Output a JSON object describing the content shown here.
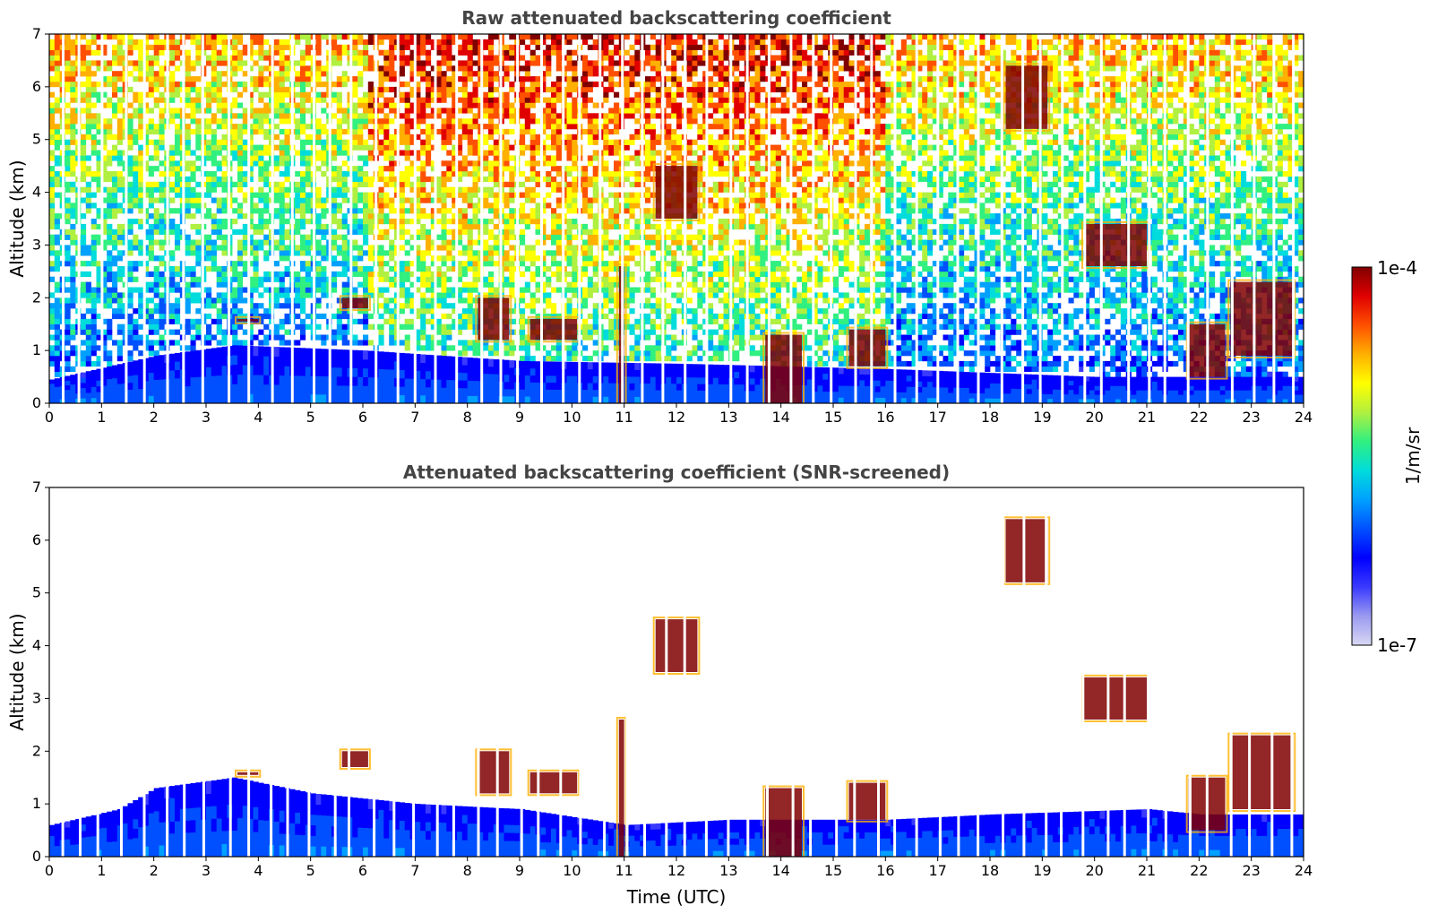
{
  "chart_data": [
    {
      "type": "heatmap",
      "title": "Raw attenuated backscattering coefficient",
      "xlabel": "",
      "ylabel": "Altitude (km)",
      "xlim": [
        0,
        24
      ],
      "ylim": [
        0,
        7
      ],
      "xticks": [
        "0",
        "1",
        "2",
        "3",
        "4",
        "5",
        "6",
        "7",
        "8",
        "9",
        "10",
        "11",
        "12",
        "13",
        "14",
        "15",
        "16",
        "17",
        "18",
        "19",
        "20",
        "21",
        "22",
        "23",
        "24"
      ],
      "yticks": [
        "0",
        "1",
        "2",
        "3",
        "4",
        "5",
        "6",
        "7"
      ],
      "noise": "speckled background increasing with altitude, stronger around 6-16 UTC",
      "boundary_layer_top_km": [
        [
          0,
          0.45
        ],
        [
          2,
          0.9
        ],
        [
          3.5,
          1.1
        ],
        [
          6,
          1.0
        ],
        [
          9,
          0.8
        ],
        [
          12,
          0.75
        ],
        [
          16,
          0.65
        ],
        [
          20,
          0.5
        ],
        [
          24,
          0.5
        ]
      ],
      "cloud_layers": [
        {
          "t_start": 3.6,
          "t_end": 4.0,
          "h_km": [
            1.55,
            1.6
          ]
        },
        {
          "t_start": 5.6,
          "t_end": 6.1,
          "h_km": [
            1.8,
            2.0
          ]
        },
        {
          "t_start": 8.2,
          "t_end": 8.8,
          "h_km": [
            1.2,
            2.0
          ]
        },
        {
          "t_start": 9.2,
          "t_end": 10.1,
          "h_km": [
            1.2,
            1.6
          ]
        },
        {
          "t_start": 10.9,
          "t_end": 11.0,
          "h_km": [
            0.0,
            2.6
          ]
        },
        {
          "t_start": 11.6,
          "t_end": 12.4,
          "h_km": [
            3.5,
            4.5
          ]
        },
        {
          "t_start": 13.7,
          "t_end": 14.4,
          "h_km": [
            0.0,
            1.3
          ]
        },
        {
          "t_start": 15.3,
          "t_end": 16.0,
          "h_km": [
            0.7,
            1.4
          ]
        },
        {
          "t_start": 18.3,
          "t_end": 19.1,
          "h_km": [
            5.2,
            6.4
          ]
        },
        {
          "t_start": 19.8,
          "t_end": 21.0,
          "h_km": [
            2.6,
            3.4
          ]
        },
        {
          "t_start": 21.8,
          "t_end": 22.5,
          "h_km": [
            0.5,
            1.5
          ]
        },
        {
          "t_start": 22.6,
          "t_end": 23.8,
          "h_km": [
            0.9,
            2.3
          ]
        }
      ]
    },
    {
      "type": "heatmap",
      "title": "Attenuated backscattering coefficient (SNR-screened)",
      "xlabel": "Time (UTC)",
      "ylabel": "Altitude (km)",
      "xlim": [
        0,
        24
      ],
      "ylim": [
        0,
        7
      ],
      "xticks": [
        "0",
        "1",
        "2",
        "3",
        "4",
        "5",
        "6",
        "7",
        "8",
        "9",
        "10",
        "11",
        "12",
        "13",
        "14",
        "15",
        "16",
        "17",
        "18",
        "19",
        "20",
        "21",
        "22",
        "23",
        "24"
      ],
      "yticks": [
        "0",
        "1",
        "2",
        "3",
        "4",
        "5",
        "6",
        "7"
      ],
      "boundary_layer_top_km": [
        [
          0,
          0.6
        ],
        [
          1.3,
          0.9
        ],
        [
          2,
          1.3
        ],
        [
          3.5,
          1.5
        ],
        [
          5,
          1.2
        ],
        [
          7,
          1.0
        ],
        [
          9,
          0.9
        ],
        [
          11,
          0.6
        ],
        [
          13,
          0.7
        ],
        [
          16,
          0.7
        ],
        [
          18,
          0.8
        ],
        [
          21,
          0.9
        ],
        [
          22,
          0.8
        ],
        [
          24,
          0.8
        ]
      ],
      "cloud_layers": [
        {
          "t_start": 3.6,
          "t_end": 4.0,
          "h_km": [
            1.55,
            1.6
          ]
        },
        {
          "t_start": 5.6,
          "t_end": 6.1,
          "h_km": [
            1.7,
            2.0
          ]
        },
        {
          "t_start": 8.2,
          "t_end": 8.8,
          "h_km": [
            1.2,
            2.0
          ]
        },
        {
          "t_start": 9.2,
          "t_end": 10.1,
          "h_km": [
            1.2,
            1.6
          ]
        },
        {
          "t_start": 10.9,
          "t_end": 11.0,
          "h_km": [
            0.0,
            2.6
          ]
        },
        {
          "t_start": 11.6,
          "t_end": 12.4,
          "h_km": [
            3.5,
            4.5
          ]
        },
        {
          "t_start": 13.7,
          "t_end": 14.4,
          "h_km": [
            0.0,
            1.3
          ]
        },
        {
          "t_start": 15.3,
          "t_end": 16.0,
          "h_km": [
            0.7,
            1.4
          ]
        },
        {
          "t_start": 18.3,
          "t_end": 19.1,
          "h_km": [
            5.2,
            6.4
          ]
        },
        {
          "t_start": 19.8,
          "t_end": 21.0,
          "h_km": [
            2.6,
            3.4
          ]
        },
        {
          "t_start": 21.8,
          "t_end": 22.5,
          "h_km": [
            0.5,
            1.5
          ]
        },
        {
          "t_start": 22.6,
          "t_end": 23.8,
          "h_km": [
            0.9,
            2.3
          ]
        }
      ]
    }
  ],
  "colorbar": {
    "min_label": "1e-7",
    "max_label": "1e-4",
    "units_label": "1/m/sr",
    "colors": [
      "#d8d8f4",
      "#9a9af0",
      "#3a3aff",
      "#0000ff",
      "#0050ff",
      "#00a0ff",
      "#00dcdc",
      "#30f080",
      "#b0f040",
      "#ffff00",
      "#ffb000",
      "#ff5000",
      "#e00000",
      "#800000"
    ]
  }
}
